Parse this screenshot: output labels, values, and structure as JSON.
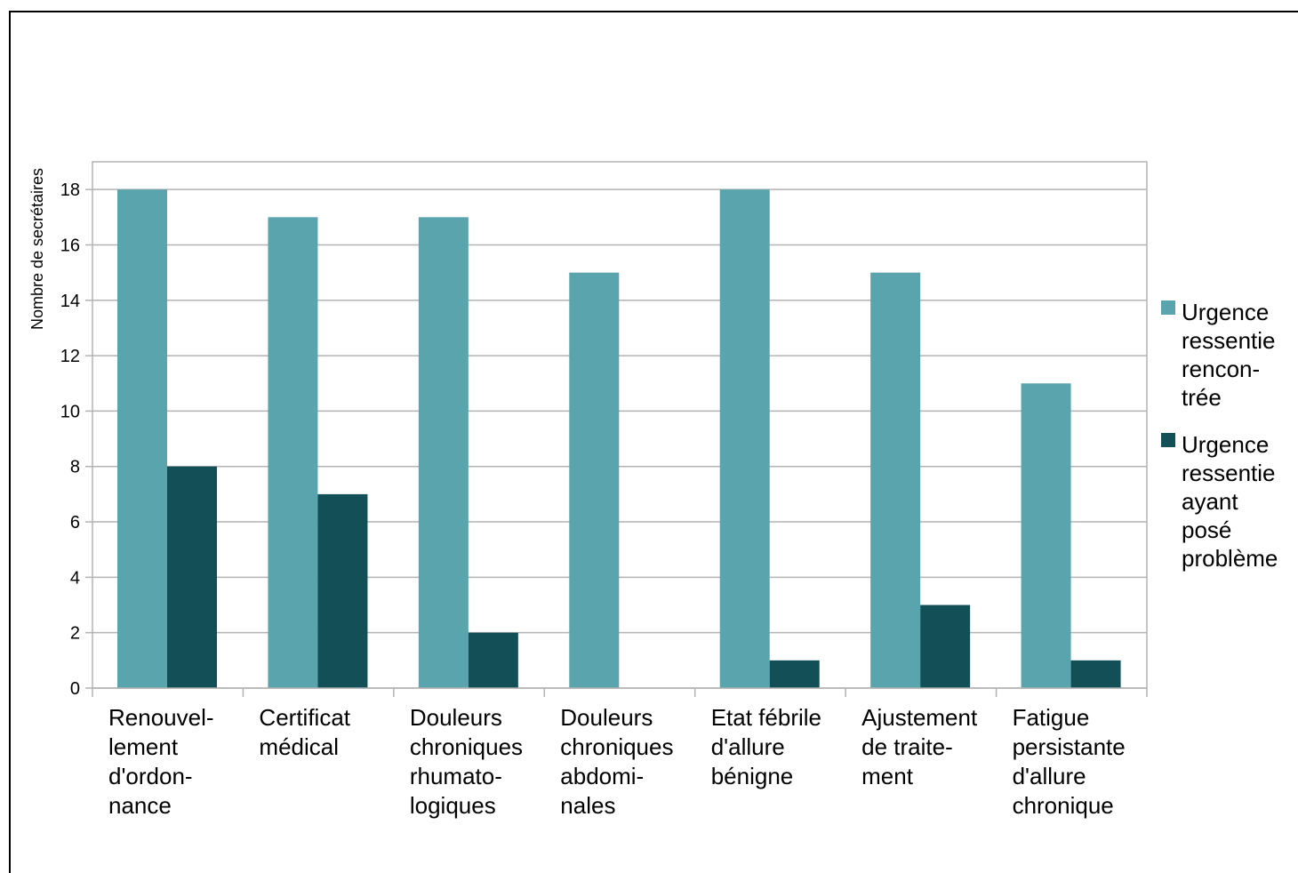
{
  "chart_data": {
    "type": "bar",
    "ylabel": "Nombre de secrétaires",
    "ylim": [
      0,
      19
    ],
    "yticks": [
      0,
      2,
      4,
      6,
      8,
      10,
      12,
      14,
      16,
      18
    ],
    "grid": true,
    "legend_position": "right",
    "categories": [
      [
        "Renouvel-",
        "lement",
        "d'ordon-",
        "nance"
      ],
      [
        "Certificat",
        "médical"
      ],
      [
        "Douleurs",
        "chroniques",
        "rhumato-",
        "logiques"
      ],
      [
        "Douleurs",
        "chroniques",
        "abdomi-",
        "nales"
      ],
      [
        "Etat fébrile",
        "d'allure",
        "bénigne"
      ],
      [
        "Ajustement",
        "de traite-",
        "ment"
      ],
      [
        "Fatigue",
        "persistante",
        "d'allure",
        "chronique"
      ]
    ],
    "series": [
      {
        "name": [
          "Urgence",
          "ressentie",
          "rencon-",
          "trée"
        ],
        "color": "#5aa5ad",
        "values": [
          18,
          17,
          17,
          15,
          18,
          15,
          11
        ]
      },
      {
        "name": [
          "Urgence",
          "ressentie",
          "ayant",
          "posé",
          "problème"
        ],
        "color": "#124f57",
        "values": [
          8,
          7,
          2,
          0,
          1,
          3,
          1
        ]
      }
    ]
  }
}
